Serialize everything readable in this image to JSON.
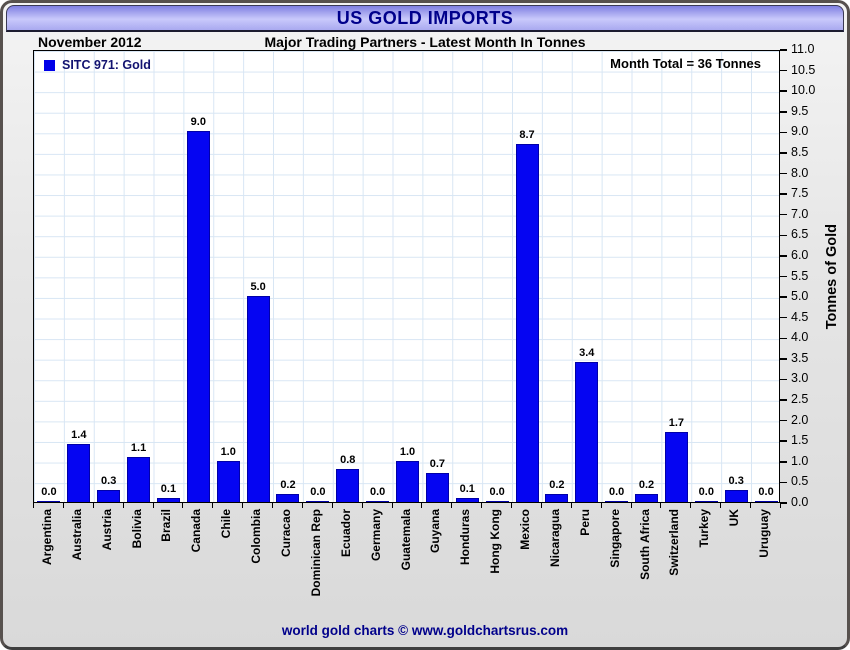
{
  "header": {
    "title": "US GOLD IMPORTS"
  },
  "subheader": {
    "date_label": "November 2012",
    "subtitle": "Major Trading Partners - Latest Month In Tonnes"
  },
  "legend": {
    "label": "SITC 971: Gold"
  },
  "annotations": {
    "month_total": "Month Total = 36 Tonnes"
  },
  "footer": {
    "credit": "world gold charts © www.goldchartsrus.com"
  },
  "colors": {
    "bar": "#0505f2",
    "bar_border": "#0000a8",
    "title_text": "#00008B",
    "header_band_top": "#7f7fe2",
    "header_band_mid": "#c9c9fb",
    "gridline": "#d8e6f4",
    "footer_text": "#00008B"
  },
  "chart_data": {
    "type": "bar",
    "title": "US GOLD IMPORTS",
    "subtitle": "Major Trading Partners - Latest Month In Tonnes",
    "period": "November 2012",
    "series_name": "SITC 971: Gold",
    "categories": [
      "Argentina",
      "Australia",
      "Austria",
      "Bolivia",
      "Brazil",
      "Canada",
      "Chile",
      "Colombia",
      "Curacao",
      "Dominican Rep",
      "Ecuador",
      "Germany",
      "Guatemala",
      "Guyana",
      "Honduras",
      "Hong Kong",
      "Mexico",
      "Nicaragua",
      "Peru",
      "Singapore",
      "South Africa",
      "Switzerland",
      "Turkey",
      "UK",
      "Uruguay"
    ],
    "values": [
      0.0,
      1.4,
      0.3,
      1.1,
      0.1,
      9.0,
      1.0,
      5.0,
      0.2,
      0.0,
      0.8,
      0.0,
      1.0,
      0.7,
      0.1,
      0.0,
      8.7,
      0.2,
      3.4,
      0.0,
      0.2,
      1.7,
      0.0,
      0.3,
      0.0
    ],
    "xlabel": "",
    "ylabel": "Tonnes of Gold",
    "ylim": [
      0,
      11
    ],
    "ytick_step": 0.5,
    "grid": true,
    "legend_position": "top-left",
    "annotation": "Month Total = 36 Tonnes"
  }
}
